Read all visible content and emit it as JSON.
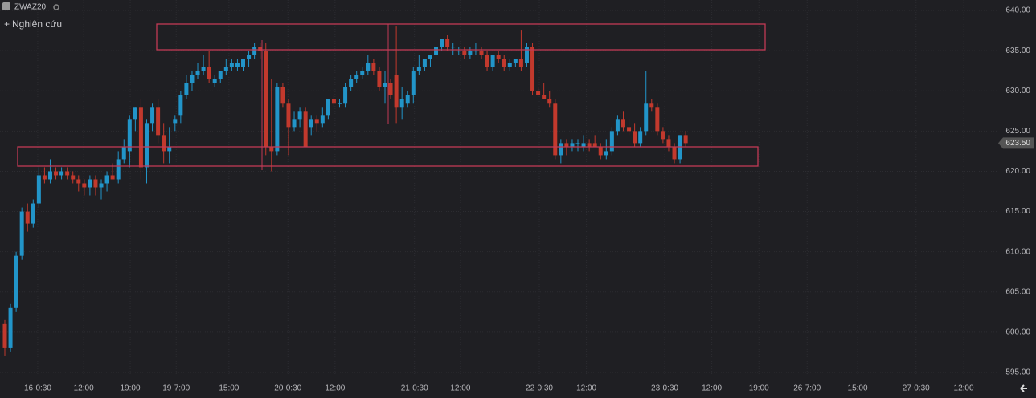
{
  "header": {
    "symbol": "ZWAZ20",
    "study_button": "Nghiên cứu"
  },
  "chart_data": {
    "type": "candlestick",
    "up_color": "#2295c9",
    "down_color": "#c2392d",
    "grid": true,
    "ylim": [
      594.4,
      641.3
    ],
    "xlim": [
      -0.85,
      174.8
    ],
    "yticks": [
      {
        "value": 595,
        "label": "595.00"
      },
      {
        "value": 600,
        "label": "600.00"
      },
      {
        "value": 605,
        "label": "605.00"
      },
      {
        "value": 610,
        "label": "610.00"
      },
      {
        "value": 615,
        "label": "615.00"
      },
      {
        "value": 620,
        "label": "620.00"
      },
      {
        "value": 625,
        "label": "625.00"
      },
      {
        "value": 630,
        "label": "630.00"
      },
      {
        "value": 635,
        "label": "635.00"
      },
      {
        "value": 640,
        "label": "640.00"
      }
    ],
    "xticks": [
      {
        "value": 5.8,
        "label": "16-0:30"
      },
      {
        "value": 13.9,
        "label": "12:00"
      },
      {
        "value": 22.1,
        "label": "19:00"
      },
      {
        "value": 30.2,
        "label": "19-7:00"
      },
      {
        "value": 39.5,
        "label": "15:00"
      },
      {
        "value": 49.9,
        "label": "20-0:30"
      },
      {
        "value": 58.2,
        "label": "12:00"
      },
      {
        "value": 72.2,
        "label": "21-0:30"
      },
      {
        "value": 80.3,
        "label": "12:00"
      },
      {
        "value": 94.2,
        "label": "22-0:30"
      },
      {
        "value": 102.5,
        "label": "12:00"
      },
      {
        "value": 116.3,
        "label": "23-0:30"
      },
      {
        "value": 124.6,
        "label": "12:00"
      },
      {
        "value": 132.9,
        "label": "19:00"
      },
      {
        "value": 141.4,
        "label": "26-7:00"
      },
      {
        "value": 150.3,
        "label": "15:00"
      },
      {
        "value": 160.6,
        "label": "27-0:30"
      },
      {
        "value": 169,
        "label": "12:00"
      }
    ],
    "last_price": {
      "value": 623.5,
      "label": "623.50"
    },
    "candles": [
      {
        "o": 601,
        "h": 601.5,
        "l": 597,
        "c": 598
      },
      {
        "o": 598,
        "h": 603.5,
        "l": 597.5,
        "c": 603
      },
      {
        "o": 603,
        "h": 610,
        "l": 602.5,
        "c": 609.5
      },
      {
        "o": 609.5,
        "h": 615.5,
        "l": 609,
        "c": 615
      },
      {
        "o": 615,
        "h": 616,
        "l": 612.5,
        "c": 613.5
      },
      {
        "o": 613.5,
        "h": 616.5,
        "l": 613,
        "c": 616
      },
      {
        "o": 616,
        "h": 620.5,
        "l": 615.5,
        "c": 619.5
      },
      {
        "o": 619.5,
        "h": 620.5,
        "l": 618.5,
        "c": 619
      },
      {
        "o": 619,
        "h": 621.5,
        "l": 618.5,
        "c": 620
      },
      {
        "o": 620,
        "h": 620.5,
        "l": 619,
        "c": 619.5
      },
      {
        "o": 619.5,
        "h": 620.5,
        "l": 619,
        "c": 620
      },
      {
        "o": 620,
        "h": 620.5,
        "l": 619,
        "c": 619.5
      },
      {
        "o": 619.5,
        "h": 620,
        "l": 618.5,
        "c": 619
      },
      {
        "o": 619,
        "h": 619.5,
        "l": 617.5,
        "c": 618.5
      },
      {
        "o": 618.5,
        "h": 619,
        "l": 617,
        "c": 618
      },
      {
        "o": 618,
        "h": 619.5,
        "l": 617,
        "c": 619
      },
      {
        "o": 619,
        "h": 619.5,
        "l": 617,
        "c": 618
      },
      {
        "o": 618,
        "h": 619,
        "l": 616.5,
        "c": 618.5
      },
      {
        "o": 618.5,
        "h": 620,
        "l": 617.5,
        "c": 619.5
      },
      {
        "o": 619.5,
        "h": 621,
        "l": 619,
        "c": 619
      },
      {
        "o": 619,
        "h": 622.5,
        "l": 618.5,
        "c": 621.5
      },
      {
        "o": 621.5,
        "h": 624,
        "l": 621,
        "c": 623
      },
      {
        "o": 622.5,
        "h": 627,
        "l": 620.5,
        "c": 626.5
      },
      {
        "o": 626.5,
        "h": 628,
        "l": 625,
        "c": 628
      },
      {
        "o": 628,
        "h": 629,
        "l": 619,
        "c": 620.5
      },
      {
        "o": 620.5,
        "h": 626.5,
        "l": 618.5,
        "c": 626
      },
      {
        "o": 626,
        "h": 628.5,
        "l": 625,
        "c": 628
      },
      {
        "o": 628,
        "h": 629,
        "l": 623.5,
        "c": 624.5
      },
      {
        "o": 624.5,
        "h": 626,
        "l": 621,
        "c": 622.5
      },
      {
        "o": 622.5,
        "h": 625.5,
        "l": 621,
        "c": 623
      },
      {
        "o": 626,
        "h": 627,
        "l": 625,
        "c": 626.5
      },
      {
        "o": 627,
        "h": 630,
        "l": 626,
        "c": 629.5
      },
      {
        "o": 629.5,
        "h": 632,
        "l": 629,
        "c": 631
      },
      {
        "o": 631,
        "h": 632.5,
        "l": 630,
        "c": 632
      },
      {
        "o": 632,
        "h": 633.5,
        "l": 631.5,
        "c": 632.5
      },
      {
        "o": 632.5,
        "h": 634.5,
        "l": 632,
        "c": 633
      },
      {
        "o": 633,
        "h": 635,
        "l": 631,
        "c": 631.5
      },
      {
        "o": 631,
        "h": 632,
        "l": 630.5,
        "c": 631.5
      },
      {
        "o": 631.5,
        "h": 632.5,
        "l": 631,
        "c": 632.5
      },
      {
        "o": 632.5,
        "h": 634,
        "l": 632,
        "c": 633
      },
      {
        "o": 633,
        "h": 634,
        "l": 632.5,
        "c": 633.5
      },
      {
        "o": 633,
        "h": 634,
        "l": 632.5,
        "c": 633.5
      },
      {
        "o": 633,
        "h": 634,
        "l": 632.5,
        "c": 634
      },
      {
        "o": 634,
        "h": 635,
        "l": 633,
        "c": 634.5
      },
      {
        "o": 634.5,
        "h": 636,
        "l": 634,
        "c": 635.5
      },
      {
        "o": 635.5,
        "h": 636,
        "l": 634,
        "c": 635
      },
      {
        "o": 635,
        "h": 636,
        "l": 622,
        "c": 623
      },
      {
        "o": 623,
        "h": 631.5,
        "l": 620,
        "c": 622.5
      },
      {
        "o": 622.5,
        "h": 631,
        "l": 622,
        "c": 630.5
      },
      {
        "o": 630.5,
        "h": 631,
        "l": 628,
        "c": 628.5
      },
      {
        "o": 628.5,
        "h": 629,
        "l": 622,
        "c": 625.5
      },
      {
        "o": 625.5,
        "h": 627.5,
        "l": 625,
        "c": 626.5
      },
      {
        "o": 626.5,
        "h": 628,
        "l": 625.5,
        "c": 627.5
      },
      {
        "o": 627.5,
        "h": 628,
        "l": 623,
        "c": 623
      },
      {
        "o": 625.5,
        "h": 627,
        "l": 624.5,
        "c": 626.5
      },
      {
        "o": 626.5,
        "h": 627,
        "l": 625,
        "c": 626
      },
      {
        "o": 626,
        "h": 628,
        "l": 625.5,
        "c": 627
      },
      {
        "o": 627,
        "h": 629,
        "l": 626.5,
        "c": 629
      },
      {
        "o": 629,
        "h": 629.5,
        "l": 628,
        "c": 628.5
      },
      {
        "o": 628.5,
        "h": 629,
        "l": 628,
        "c": 628.5
      },
      {
        "o": 628.5,
        "h": 631,
        "l": 628,
        "c": 630.5
      },
      {
        "o": 630.5,
        "h": 632,
        "l": 630,
        "c": 631.5
      },
      {
        "o": 631.5,
        "h": 632.5,
        "l": 631,
        "c": 632
      },
      {
        "o": 632,
        "h": 633,
        "l": 631.5,
        "c": 632.5
      },
      {
        "o": 632.5,
        "h": 634.5,
        "l": 632,
        "c": 633.5
      },
      {
        "o": 633.5,
        "h": 634,
        "l": 632,
        "c": 632.5
      },
      {
        "o": 632.5,
        "h": 633,
        "l": 630,
        "c": 630.5
      },
      {
        "o": 630.5,
        "h": 632.5,
        "l": 628.5,
        "c": 631
      },
      {
        "o": 631,
        "h": 631.5,
        "l": 629,
        "c": 629.5
      },
      {
        "o": 632,
        "h": 638,
        "l": 626,
        "c": 628
      },
      {
        "o": 628,
        "h": 630.5,
        "l": 626.5,
        "c": 629
      },
      {
        "o": 628.5,
        "h": 630,
        "l": 628,
        "c": 629.5
      },
      {
        "o": 629.5,
        "h": 633,
        "l": 628.5,
        "c": 632.5
      },
      {
        "o": 632.5,
        "h": 634.5,
        "l": 632,
        "c": 633
      },
      {
        "o": 633,
        "h": 634,
        "l": 632.5,
        "c": 634
      },
      {
        "o": 634,
        "h": 634.5,
        "l": 633,
        "c": 634.5
      },
      {
        "o": 634.5,
        "h": 635.5,
        "l": 634,
        "c": 635.5
      },
      {
        "o": 635.5,
        "h": 636.5,
        "l": 635,
        "c": 636.5
      },
      {
        "o": 636.5,
        "h": 637,
        "l": 635,
        "c": 635.5
      },
      {
        "o": 635.5,
        "h": 636,
        "l": 634.5,
        "c": 635.5
      },
      {
        "o": 635,
        "h": 635.5,
        "l": 634.5,
        "c": 635
      },
      {
        "o": 635,
        "h": 635.5,
        "l": 634,
        "c": 634.5
      },
      {
        "o": 634.5,
        "h": 635.5,
        "l": 634,
        "c": 635
      },
      {
        "o": 635,
        "h": 636,
        "l": 634.5,
        "c": 635
      },
      {
        "o": 635,
        "h": 635.5,
        "l": 634,
        "c": 634.5
      },
      {
        "o": 634.5,
        "h": 635,
        "l": 632.5,
        "c": 633
      },
      {
        "o": 633,
        "h": 634.5,
        "l": 632.5,
        "c": 634.5
      },
      {
        "o": 634.5,
        "h": 635,
        "l": 633.5,
        "c": 634
      },
      {
        "o": 634,
        "h": 634.5,
        "l": 632.5,
        "c": 633
      },
      {
        "o": 633,
        "h": 634,
        "l": 632.5,
        "c": 633.5
      },
      {
        "o": 633.5,
        "h": 634,
        "l": 633,
        "c": 634
      },
      {
        "o": 634,
        "h": 637.5,
        "l": 632.5,
        "c": 633
      },
      {
        "o": 633.5,
        "h": 636,
        "l": 633,
        "c": 635.5
      },
      {
        "o": 635.5,
        "h": 636,
        "l": 629.5,
        "c": 630
      },
      {
        "o": 630,
        "h": 630.5,
        "l": 629.5,
        "c": 629.5
      },
      {
        "o": 629.5,
        "h": 631,
        "l": 629,
        "c": 629
      },
      {
        "o": 629,
        "h": 630,
        "l": 628,
        "c": 628.5
      },
      {
        "o": 628.5,
        "h": 629,
        "l": 621.5,
        "c": 622
      },
      {
        "o": 622,
        "h": 624,
        "l": 621,
        "c": 623.5
      },
      {
        "o": 623.5,
        "h": 624,
        "l": 622,
        "c": 623
      },
      {
        "o": 623,
        "h": 624,
        "l": 622.5,
        "c": 623.5
      },
      {
        "o": 623.5,
        "h": 624,
        "l": 622.5,
        "c": 623.5
      },
      {
        "o": 623,
        "h": 624.5,
        "l": 622.5,
        "c": 623.5
      },
      {
        "o": 623.5,
        "h": 624,
        "l": 622.5,
        "c": 623
      },
      {
        "o": 623.5,
        "h": 624.5,
        "l": 623,
        "c": 623
      },
      {
        "o": 623,
        "h": 623.5,
        "l": 621.5,
        "c": 622
      },
      {
        "o": 622,
        "h": 624,
        "l": 621.5,
        "c": 622.5
      },
      {
        "o": 622.5,
        "h": 625.5,
        "l": 622,
        "c": 625
      },
      {
        "o": 625,
        "h": 627,
        "l": 624.5,
        "c": 626.5
      },
      {
        "o": 626.5,
        "h": 627.5,
        "l": 625,
        "c": 625.5
      },
      {
        "o": 625.5,
        "h": 626.5,
        "l": 624.5,
        "c": 625
      },
      {
        "o": 625,
        "h": 626,
        "l": 623,
        "c": 623.5
      },
      {
        "o": 623.5,
        "h": 625.5,
        "l": 623,
        "c": 625
      },
      {
        "o": 625,
        "h": 632.5,
        "l": 624.5,
        "c": 628.5
      },
      {
        "o": 628.5,
        "h": 629,
        "l": 627.5,
        "c": 628
      },
      {
        "o": 628,
        "h": 628.5,
        "l": 624.5,
        "c": 625
      },
      {
        "o": 625,
        "h": 625.5,
        "l": 623.5,
        "c": 624
      },
      {
        "o": 624,
        "h": 624.5,
        "l": 622.5,
        "c": 623
      },
      {
        "o": 623,
        "h": 623.5,
        "l": 621,
        "c": 621.5
      },
      {
        "o": 621.5,
        "h": 624.5,
        "l": 621,
        "c": 624.5
      },
      {
        "o": 624.5,
        "h": 625,
        "l": 623,
        "c": 623.5
      }
    ]
  }
}
